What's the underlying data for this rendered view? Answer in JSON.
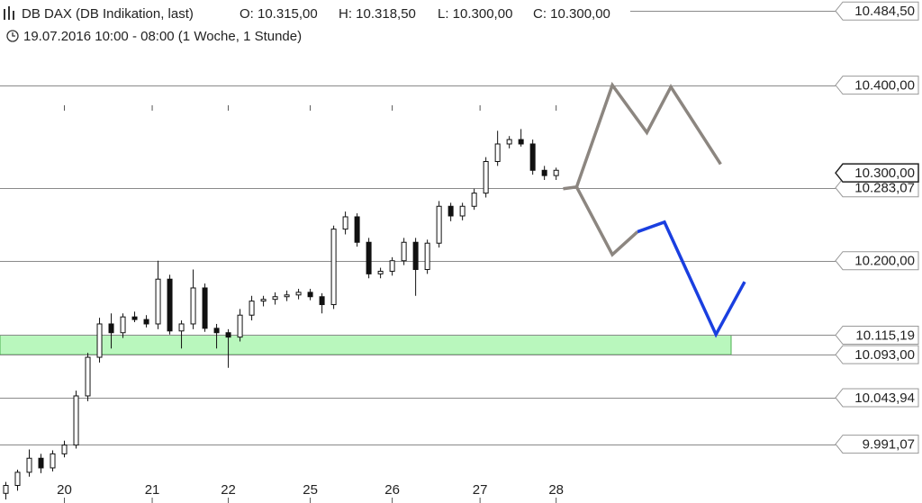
{
  "chart_data": {
    "type": "candlestick",
    "title": "DB DAX (DB Indikation, last)",
    "ohlc_labels": [
      "O: 10.315,00",
      "H: 10.318,50",
      "L: 10.300,00",
      "C: 10.300,00"
    ],
    "subtitle": "19.07.2016 10:00 - 08:00 (1 Woche, 1 Stunde)",
    "xlim": [
      0,
      141.5
    ],
    "ylim": [
      9924,
      10497
    ],
    "xticks": [
      {
        "value": 11,
        "label": "20"
      },
      {
        "value": 26,
        "label": "21"
      },
      {
        "value": 39,
        "label": "22"
      },
      {
        "value": 53,
        "label": "25"
      },
      {
        "value": 67,
        "label": "26"
      },
      {
        "value": 82,
        "label": "27"
      },
      {
        "value": 95,
        "label": "28"
      }
    ],
    "levels": [
      {
        "value": 10484.5,
        "label": "10.484,50"
      },
      {
        "value": 10400,
        "label": "10.400,00"
      },
      {
        "value": 10300,
        "label": "10.300,00"
      },
      {
        "value": 10283.07,
        "label": "10.283,07"
      },
      {
        "value": 10200,
        "label": "10.200,00"
      },
      {
        "value": 10115.19,
        "label": "10.115,19"
      },
      {
        "value": 10093,
        "label": "10.093,00"
      },
      {
        "value": 10043.94,
        "label": "10.043,94"
      },
      {
        "value": 9991.07,
        "label": "9.991,07"
      }
    ],
    "current_level": 2,
    "zone": {
      "from": 10093,
      "to": 10115.19,
      "color": "#b9f7bd",
      "edge": "#4caf50"
    },
    "x": [
      1,
      3,
      5,
      7,
      9,
      11,
      13,
      15,
      17,
      19,
      21,
      23,
      25,
      27,
      29,
      31,
      33,
      35,
      37,
      39,
      41,
      43,
      45,
      47,
      49,
      51,
      53,
      55,
      57,
      59,
      61,
      63,
      65,
      67,
      69,
      71,
      73,
      75,
      77,
      79,
      81,
      83,
      85,
      87,
      89,
      91,
      93,
      95
    ],
    "open": [
      9935,
      9944,
      9959,
      9975,
      9964,
      9980,
      9990,
      10046,
      10090,
      10128,
      10118,
      10136,
      10133,
      10128,
      10179,
      10120,
      10128,
      10169,
      10123,
      10118,
      10113,
      10138,
      10154,
      10156,
      10159,
      10161,
      10164,
      10159,
      10150,
      10236,
      10250,
      10221,
      10185,
      10188,
      10200,
      10221,
      10190,
      10220,
      10262,
      10251,
      10262,
      10277,
      10313,
      10333,
      10338,
      10333,
      10303,
      10297
    ],
    "high": [
      9948,
      9962,
      9985,
      9980,
      9984,
      9995,
      10052,
      10095,
      10135,
      10140,
      10140,
      10142,
      10138,
      10200,
      10184,
      10132,
      10190,
      10174,
      10128,
      10122,
      10145,
      10160,
      10160,
      10164,
      10166,
      10168,
      10168,
      10163,
      10240,
      10256,
      10254,
      10226,
      10192,
      10204,
      10226,
      10226,
      10224,
      10268,
      10266,
      10266,
      10282,
      10318,
      10348,
      10342,
      10350,
      10338,
      10308,
      10306
    ],
    "low": [
      9928,
      9938,
      9954,
      9958,
      9960,
      9976,
      9986,
      10040,
      10084,
      10100,
      10112,
      10130,
      10124,
      10122,
      10116,
      10100,
      10122,
      10119,
      10100,
      10078,
      10108,
      10132,
      10148,
      10150,
      10154,
      10156,
      10155,
      10140,
      10145,
      10230,
      10216,
      10180,
      10180,
      10183,
      10195,
      10160,
      10185,
      10215,
      10245,
      10246,
      10258,
      10272,
      10308,
      10328,
      10330,
      10298,
      10292,
      10292
    ],
    "close": [
      9944,
      9959,
      9975,
      9964,
      9980,
      9990,
      10046,
      10090,
      10128,
      10118,
      10136,
      10133,
      10128,
      10179,
      10120,
      10128,
      10169,
      10123,
      10118,
      10113,
      10138,
      10154,
      10156,
      10159,
      10161,
      10164,
      10159,
      10150,
      10236,
      10250,
      10221,
      10185,
      10188,
      10200,
      10221,
      10190,
      10220,
      10262,
      10251,
      10262,
      10277,
      10313,
      10333,
      10338,
      10333,
      10303,
      10297,
      10303
    ],
    "projections": [
      {
        "color": "#8c8680",
        "x": [
          96.2,
          98.5,
          104.6,
          110.5,
          114.6,
          123.1
        ],
        "values": [
          10282,
          10284,
          10400,
          10346,
          10398,
          10310
        ]
      },
      {
        "color": "#8c8680",
        "x": [
          98.5,
          104.6,
          108.9
        ],
        "values": [
          10284,
          10207,
          10233
        ]
      },
      {
        "color": "#1a3fe0",
        "x": [
          108.9,
          113.5,
          122.3,
          127.2
        ],
        "values": [
          10233,
          10244,
          10116,
          10176
        ]
      }
    ]
  }
}
